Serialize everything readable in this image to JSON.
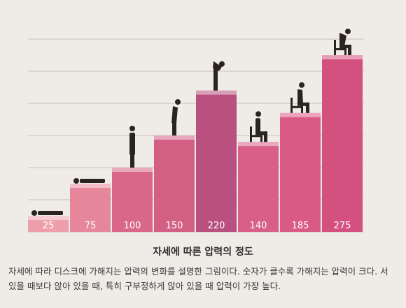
{
  "chart_data": {
    "type": "bar",
    "categories": [
      "lying-flat",
      "lying-side",
      "standing",
      "standing-lean-slight",
      "standing-bent",
      "sitting-upright",
      "sitting-lean",
      "sitting-hunched"
    ],
    "values": [
      25,
      75,
      100,
      150,
      220,
      140,
      185,
      275
    ],
    "value_labels": [
      "25",
      "75",
      "100",
      "150",
      "220",
      "140",
      "185",
      "275"
    ],
    "ylim": [
      0,
      300
    ],
    "grid": true,
    "colors": [
      "#ef9fac",
      "#e7879b",
      "#d9678a",
      "#d45f85",
      "#b9507f",
      "#d75f88",
      "#d95a84",
      "#d4507f"
    ],
    "posture_icons": [
      "lying-person-icon",
      "lying-person-icon",
      "standing-person-icon",
      "leaning-person-icon",
      "bent-person-icon",
      "seated-person-icon",
      "seated-leaning-person-icon",
      "hunched-seated-person-icon"
    ]
  },
  "caption": {
    "title": "자세에 따른 압력의 정도",
    "body": "자세에 따라 디스크에 가해지는 압력의 변화를 설명한 그림이다. 숫자가 클수록 가해지는 압력이 크다. 서 있을 때보다 앉아 있을 때, 특히 구부정하게 앉아 있을 때 압력이 가장 높다."
  }
}
